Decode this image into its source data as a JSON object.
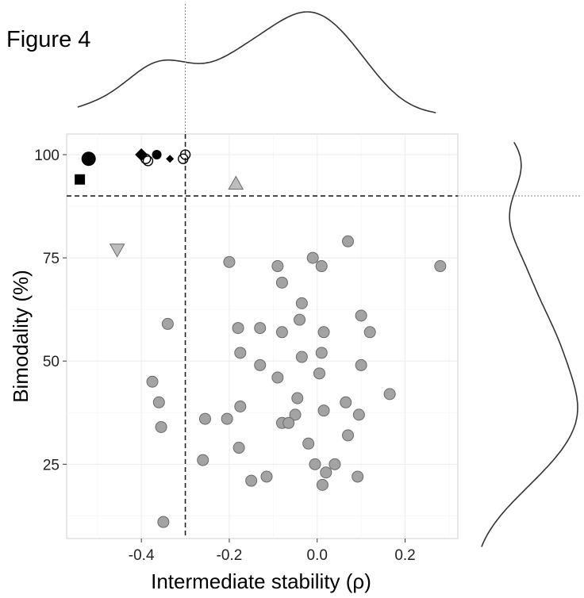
{
  "figure_label": "Figure 4",
  "chart_data": {
    "type": "scatter",
    "xlabel": "Intermediate stability (ρ)",
    "ylabel": "Bimodality (%)",
    "xlim": [
      -0.57,
      0.32
    ],
    "ylim": [
      7,
      105
    ],
    "x_ticks": [
      -0.4,
      -0.2,
      0.0,
      0.2
    ],
    "x_tick_labels": [
      "-0.4",
      "-0.2",
      "0.0",
      "0.2"
    ],
    "y_ticks": [
      25,
      50,
      75,
      100
    ],
    "y_tick_labels": [
      "25",
      "50",
      "75",
      "100"
    ],
    "grid": true,
    "reference_lines": {
      "x": -0.3,
      "y": 90
    },
    "marginal_density": {
      "top": "x",
      "right": "y"
    },
    "colors": {
      "gray_point": "#a3a3a3",
      "gray_edge": "#6a6a6a",
      "black": "#000000",
      "line": "#333333"
    },
    "series": [
      {
        "marker": "circle-gray",
        "points": [
          {
            "x": 0.07,
            "y": 79
          },
          {
            "x": -0.2,
            "y": 74
          },
          {
            "x": -0.01,
            "y": 75
          },
          {
            "x": 0.28,
            "y": 73
          },
          {
            "x": -0.09,
            "y": 73
          },
          {
            "x": 0.01,
            "y": 73
          },
          {
            "x": -0.08,
            "y": 69
          },
          {
            "x": -0.035,
            "y": 64
          },
          {
            "x": -0.34,
            "y": 59
          },
          {
            "x": 0.1,
            "y": 61
          },
          {
            "x": -0.04,
            "y": 60
          },
          {
            "x": -0.18,
            "y": 58
          },
          {
            "x": -0.13,
            "y": 58
          },
          {
            "x": -0.08,
            "y": 57
          },
          {
            "x": 0.015,
            "y": 57
          },
          {
            "x": 0.12,
            "y": 57
          },
          {
            "x": -0.175,
            "y": 52
          },
          {
            "x": 0.01,
            "y": 52
          },
          {
            "x": -0.035,
            "y": 51
          },
          {
            "x": -0.13,
            "y": 49
          },
          {
            "x": 0.1,
            "y": 49
          },
          {
            "x": 0.005,
            "y": 47
          },
          {
            "x": -0.09,
            "y": 46
          },
          {
            "x": -0.375,
            "y": 45
          },
          {
            "x": 0.165,
            "y": 42
          },
          {
            "x": -0.045,
            "y": 41
          },
          {
            "x": -0.36,
            "y": 40
          },
          {
            "x": 0.065,
            "y": 40
          },
          {
            "x": -0.175,
            "y": 39
          },
          {
            "x": 0.015,
            "y": 38
          },
          {
            "x": 0.095,
            "y": 37
          },
          {
            "x": -0.05,
            "y": 37
          },
          {
            "x": -0.255,
            "y": 36
          },
          {
            "x": -0.205,
            "y": 36
          },
          {
            "x": -0.08,
            "y": 35
          },
          {
            "x": -0.065,
            "y": 35
          },
          {
            "x": -0.355,
            "y": 34
          },
          {
            "x": 0.07,
            "y": 32
          },
          {
            "x": -0.02,
            "y": 30
          },
          {
            "x": -0.178,
            "y": 29
          },
          {
            "x": -0.26,
            "y": 26
          },
          {
            "x": -0.005,
            "y": 25
          },
          {
            "x": 0.04,
            "y": 25
          },
          {
            "x": 0.02,
            "y": 23
          },
          {
            "x": -0.115,
            "y": 22
          },
          {
            "x": 0.092,
            "y": 22
          },
          {
            "x": -0.15,
            "y": 21
          },
          {
            "x": 0.012,
            "y": 20
          },
          {
            "x": -0.35,
            "y": 11
          }
        ]
      },
      {
        "marker": "triangle-up-gray",
        "points": [
          {
            "x": -0.185,
            "y": 93
          }
        ]
      },
      {
        "marker": "triangle-down-gray",
        "points": [
          {
            "x": -0.455,
            "y": 77
          }
        ]
      },
      {
        "marker": "circle-black-large",
        "points": [
          {
            "x": -0.52,
            "y": 99
          }
        ]
      },
      {
        "marker": "square-black",
        "points": [
          {
            "x": -0.54,
            "y": 94
          }
        ]
      },
      {
        "marker": "diamond-black-large",
        "points": [
          {
            "x": -0.4,
            "y": 100
          }
        ]
      },
      {
        "marker": "circle-black-small",
        "points": [
          {
            "x": -0.365,
            "y": 100
          }
        ]
      },
      {
        "marker": "diamond-black-small",
        "points": [
          {
            "x": -0.335,
            "y": 99
          }
        ]
      },
      {
        "marker": "circle-open",
        "points": [
          {
            "x": -0.39,
            "y": 99
          },
          {
            "x": -0.385,
            "y": 98.5
          },
          {
            "x": -0.3,
            "y": 100
          },
          {
            "x": -0.305,
            "y": 99
          }
        ]
      }
    ]
  }
}
